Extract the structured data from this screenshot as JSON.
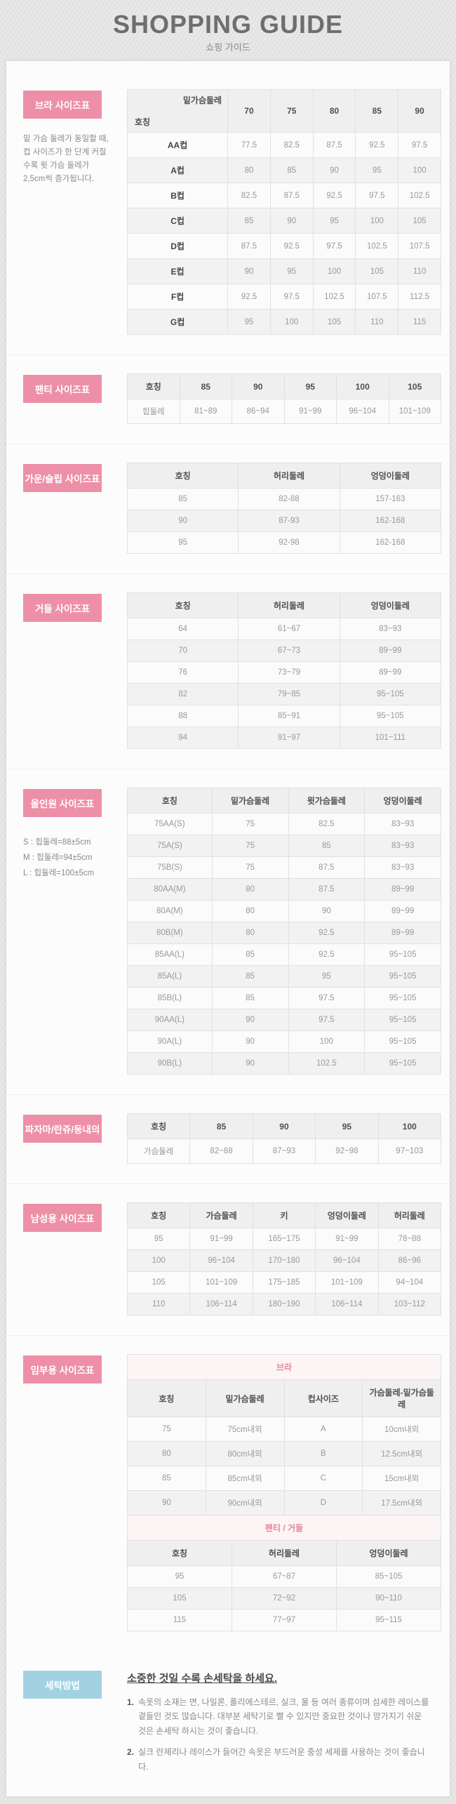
{
  "header": {
    "title": "SHOPPING GUIDE",
    "subtitle": "쇼핑 가이드"
  },
  "colors": {
    "label_pink": "#ee8fa8",
    "label_blue": "#a2d2e2",
    "subtable_title_pink": "#e8849f",
    "table_border": "#e1e1e1",
    "header_row_bg": "#efefef"
  },
  "sections": [
    {
      "id": "bra",
      "label": "브라 사이즈표",
      "note": "밑 가슴 둘레가 동일할 때, 컵 사이즈가 한 단계 커질수록 윗 가슴 둘레가 2,5cm씩 증가됩니다.",
      "tables": [
        {
          "type": "diagonal",
          "corner_top": "밑가슴둘레",
          "corner_bottom": "호칭",
          "columns": [
            "70",
            "75",
            "80",
            "85",
            "90"
          ],
          "rows": [
            [
              "AA컵",
              "77.5",
              "82.5",
              "87.5",
              "92.5",
              "97.5"
            ],
            [
              "A컵",
              "80",
              "85",
              "90",
              "95",
              "100"
            ],
            [
              "B컵",
              "82.5",
              "87.5",
              "92.5",
              "97.5",
              "102.5"
            ],
            [
              "C컵",
              "85",
              "90",
              "95",
              "100",
              "105"
            ],
            [
              "D컵",
              "87.5",
              "92.5",
              "97.5",
              "102.5",
              "107.5"
            ],
            [
              "E컵",
              "90",
              "95",
              "100",
              "105",
              "110"
            ],
            [
              "F컵",
              "92.5",
              "97.5",
              "102.5",
              "107.5",
              "112.5"
            ],
            [
              "G컵",
              "95",
              "100",
              "105",
              "110",
              "115"
            ]
          ]
        }
      ]
    },
    {
      "id": "panty",
      "label": "팬티 사이즈표",
      "tables": [
        {
          "type": "simple",
          "header": [
            "호칭",
            "85",
            "90",
            "95",
            "100",
            "105"
          ],
          "rows": [
            [
              "힙둘레",
              "81~89",
              "86~94",
              "91~99",
              "96~104",
              "101~109"
            ]
          ]
        }
      ]
    },
    {
      "id": "gown",
      "label": "가운/슬립 사이즈표",
      "tables": [
        {
          "type": "simple",
          "header": [
            "호칭",
            "허리둘레",
            "엉덩이둘레"
          ],
          "rows": [
            [
              "85",
              "82-88",
              "157-163"
            ],
            [
              "90",
              "87-93",
              "162-168"
            ],
            [
              "95",
              "92-98",
              "162-168"
            ]
          ]
        }
      ]
    },
    {
      "id": "girdle",
      "label": "거들 사이즈표",
      "tables": [
        {
          "type": "simple",
          "header": [
            "호칭",
            "허리둘레",
            "엉덩이둘레"
          ],
          "rows": [
            [
              "64",
              "61~67",
              "83~93"
            ],
            [
              "70",
              "67~73",
              "89~99"
            ],
            [
              "76",
              "73~79",
              "89~99"
            ],
            [
              "82",
              "79~85",
              "95~105"
            ],
            [
              "88",
              "85~91",
              "95~105"
            ],
            [
              "94",
              "91~97",
              "101~111"
            ]
          ]
        }
      ]
    },
    {
      "id": "allinone",
      "label": "올인원 사이즈표",
      "notes": [
        "S : 힙둘레=88±5cm",
        "M : 힙둘레=94±5cm",
        "L : 힙둘레=100±5cm"
      ],
      "tables": [
        {
          "type": "simple",
          "header": [
            "호칭",
            "밑가슴둘레",
            "윗가슴둘레",
            "엉덩이둘레"
          ],
          "rows": [
            [
              "75AA(S)",
              "75",
              "82.5",
              "83~93"
            ],
            [
              "75A(S)",
              "75",
              "85",
              "83~93"
            ],
            [
              "75B(S)",
              "75",
              "87.5",
              "83~93"
            ],
            [
              "80AA(M)",
              "80",
              "87.5",
              "89~99"
            ],
            [
              "80A(M)",
              "80",
              "90",
              "89~99"
            ],
            [
              "80B(M)",
              "80",
              "92.5",
              "89~99"
            ],
            [
              "85AA(L)",
              "85",
              "92.5",
              "95~105"
            ],
            [
              "85A(L)",
              "85",
              "95",
              "95~105"
            ],
            [
              "85B(L)",
              "85",
              "97.5",
              "95~105"
            ],
            [
              "90AA(L)",
              "90",
              "97.5",
              "95~105"
            ],
            [
              "90A(L)",
              "90",
              "100",
              "95~105"
            ],
            [
              "90B(L)",
              "90",
              "102.5",
              "95~105"
            ]
          ]
        }
      ]
    },
    {
      "id": "pajama",
      "label": "파자마/란쥬/동내의",
      "tables": [
        {
          "type": "simple",
          "header": [
            "호칭",
            "85",
            "90",
            "95",
            "100"
          ],
          "rows": [
            [
              "가슴둘레",
              "82~88",
              "87~93",
              "92~98",
              "97~103"
            ]
          ]
        }
      ]
    },
    {
      "id": "mens",
      "label": "남성용 사이즈표",
      "tables": [
        {
          "type": "simple",
          "header": [
            "호칭",
            "가슴둘레",
            "키",
            "엉덩이둘레",
            "허리둘레"
          ],
          "rows": [
            [
              "95",
              "91~99",
              "165~175",
              "91~99",
              "78~88"
            ],
            [
              "100",
              "96~104",
              "170~180",
              "96~104",
              "86~96"
            ],
            [
              "105",
              "101~109",
              "175~185",
              "101~109",
              "94~104"
            ],
            [
              "110",
              "106~114",
              "180~190",
              "106~114",
              "103~112"
            ]
          ]
        }
      ]
    },
    {
      "id": "maternity",
      "label": "임부용 사이즈표",
      "tables": [
        {
          "type": "simple",
          "title": "브라",
          "header": [
            "호칭",
            "밑가슴둘레",
            "컵사이즈",
            "가슴둘레-밑가슴둘레"
          ],
          "rows": [
            [
              "75",
              "75cm내외",
              "A",
              "10cm내외"
            ],
            [
              "80",
              "80cm내외",
              "B",
              "12.5cm내외"
            ],
            [
              "85",
              "85cm내외",
              "C",
              "15cm내외"
            ],
            [
              "90",
              "90cm내외",
              "D",
              "17.5cm내외"
            ]
          ]
        },
        {
          "type": "simple",
          "title": "팬티 / 거들",
          "header": [
            "호칭",
            "허리둘레",
            "엉덩이둘레"
          ],
          "rows": [
            [
              "95",
              "67~87",
              "85~105"
            ],
            [
              "105",
              "72~92",
              "90~110"
            ],
            [
              "115",
              "77~97",
              "95~115"
            ]
          ]
        }
      ]
    }
  ],
  "washing": {
    "label": "세탁방법",
    "title": "소중한 것일 수록 손세탁을 하세요.",
    "items": [
      {
        "num": "1.",
        "text": "속옷의 소재는 면, 나일론, 폴리에스테르, 실크, 울 등 여러 종류이며 섬세한 레이스를 곁들인 것도 많습니다. 대부분 세탁기로 빨 수 있지만 중요한 것이나 망가지기 쉬운 것은 손세탁 하시는 것이 좋습니다."
      },
      {
        "num": "2.",
        "text": "실크 란제리나 레이스가 들어간 속옷은 부드러운 중성 세제를 사용하는 것이 좋습니다."
      }
    ]
  }
}
